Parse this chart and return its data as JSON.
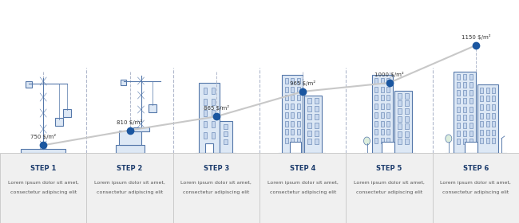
{
  "steps": [
    "STEP 1",
    "STEP 2",
    "STEP 3",
    "STEP 4",
    "STEP 5",
    "STEP 6"
  ],
  "prices": [
    "750 $/m²",
    "810 $/m²",
    "865 $/m²",
    "965 $/m²",
    "1000 $/m²",
    "1150 $/m²"
  ],
  "price_values": [
    750,
    810,
    865,
    965,
    1000,
    1150
  ],
  "subtitle_line1": "Lorem ipsum dolor sit amet,",
  "subtitle_line2": "consectetur adipiscing elit",
  "dot_color": "#1a56a0",
  "line_color": "#c8c8c8",
  "dashed_color": "#b0b8cc",
  "building_color": "#5578aa",
  "building_fill": "#dde8f5",
  "box_bg": "#f0f0f0",
  "box_border": "#cccccc",
  "step_color": "#1a3a6b",
  "text_color": "#555555",
  "bg_color": "#ffffff",
  "price_min": 700,
  "price_max": 1220
}
